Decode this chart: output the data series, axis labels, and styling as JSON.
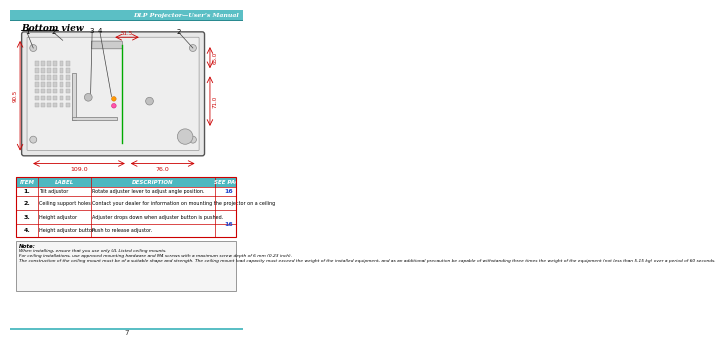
{
  "title_header": "DLP Projector—User’s Manual",
  "section_title": "Bottom view",
  "header_color": "#4db8c0",
  "header_text_color": "#ffffff",
  "table_border_color": "#cc0000",
  "table_header": [
    "ITEM",
    "LABEL",
    "DESCRIPTION",
    "SEE PAGE"
  ],
  "table_rows": [
    [
      "1.",
      "Tilt adjustor",
      "Rotate adjuster lever to adjust angle position.",
      "16"
    ],
    [
      "2.",
      "Ceiling support holes",
      "Contact your dealer for information on mounting the projector on a ceiling",
      ""
    ],
    [
      "3.",
      "Height adjustor",
      "Adjuster drops down when adjuster button is pushed.",
      "16"
    ],
    [
      "4.",
      "Height adjustor button",
      "Push to release adjustor.",
      ""
    ]
  ],
  "note_title": "Note:",
  "note_text": "When installing, ensure that you use only UL Listed ceiling mounts.\nFor ceiling installations, use approved mounting hardware and M4 screws with a maximum screw depth of 6 mm (0.23 inch).\nThe construction of the ceiling mount must be of a suitable shape and strength. The ceiling mount load capacity must exceed the weight of the installed equipment, and as an additional precaution be capable of withstanding three times the weight of the equipment (not less than 5.15 kg) over a period of 60 seconds.",
  "dim_color": "#cc0000",
  "green_color": "#00aa00",
  "page_number": "7",
  "bg_color": "#ffffff"
}
